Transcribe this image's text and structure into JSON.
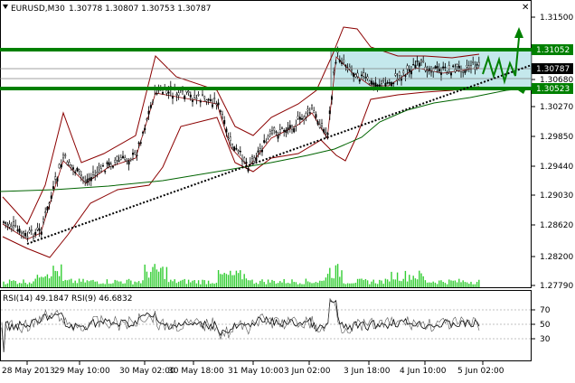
{
  "header": {
    "symbol": "EURUSD,M30",
    "ohlc": "1.30778 1.30807 1.30753 1.30787"
  },
  "price_axis": {
    "ticks": [
      "1.31500",
      "1.31105",
      "1.30680",
      "1.30270",
      "1.29850",
      "1.29440",
      "1.29030",
      "1.28620",
      "1.28200",
      "1.27790"
    ],
    "levels": [
      {
        "label": "1.31052",
        "kind": "resistance",
        "color": "#008000"
      },
      {
        "label": "1.30787",
        "kind": "current",
        "color": "#000000"
      },
      {
        "label": "1.30523",
        "kind": "support",
        "color": "#008000"
      }
    ]
  },
  "rsi_panel": {
    "title": "RSI(14) 49.1847  RSI(9) 46.6832",
    "ticks": [
      "70",
      "50",
      "30"
    ]
  },
  "time_axis": {
    "labels": [
      "28 May 2013",
      "29 May 10:00",
      "30 May 02:00",
      "30 May 18:00",
      "31 May 10:00",
      "3 Jun 02:00",
      "3 Jun 18:00",
      "4 Jun 10:00",
      "5 Jun 02:00"
    ]
  },
  "colors": {
    "background": "#ffffff",
    "candles": "#000000",
    "bollinger": "#8b0000",
    "moving_average": "#006400",
    "volume": "#32cd32",
    "levels": "#008000",
    "range_box": "#b0e0e6",
    "trendline": "#000000"
  }
}
